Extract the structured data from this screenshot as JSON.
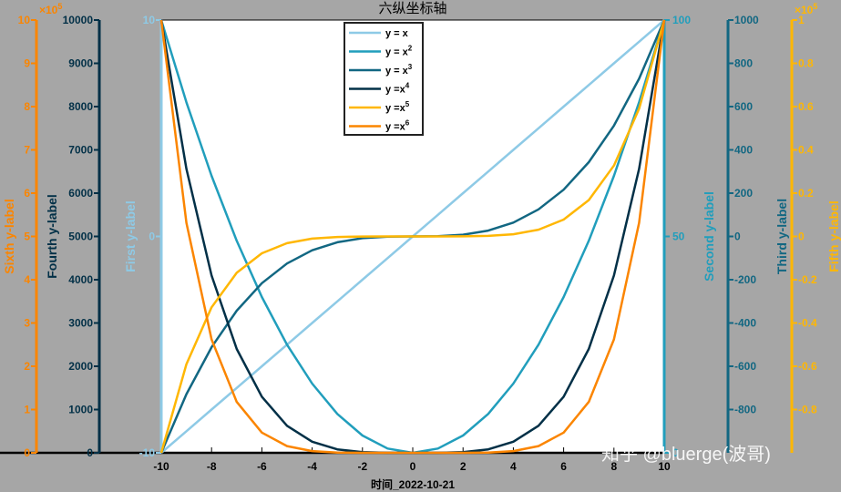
{
  "chart_data": {
    "type": "line",
    "title": "六纵坐标轴",
    "xlabel": "时间_2022-10-21",
    "xlim": [
      -10,
      10
    ],
    "xticks": [
      -10,
      -8,
      -6,
      -4,
      -2,
      0,
      2,
      4,
      6,
      8,
      10
    ],
    "x": [
      -10,
      -9,
      -8,
      -7,
      -6,
      -5,
      -4,
      -3,
      -2,
      -1,
      0,
      1,
      2,
      3,
      4,
      5,
      6,
      7,
      8,
      9,
      10
    ],
    "axes": [
      {
        "id": "y1",
        "label": "First y-label",
        "side": "left",
        "color": "#8ecae6",
        "ylim": [
          -10,
          10
        ],
        "ticks": [
          -10,
          0,
          10
        ]
      },
      {
        "id": "y2",
        "label": "Second y-label",
        "side": "right",
        "color": "#219ebc",
        "ylim": [
          0,
          100
        ],
        "ticks": [
          0,
          50,
          100
        ]
      },
      {
        "id": "y3",
        "label": "Third y-label",
        "side": "right",
        "color": "#126782",
        "ylim": [
          -1000,
          1000
        ],
        "ticks": [
          -800,
          -600,
          -400,
          -200,
          0,
          200,
          400,
          600,
          800,
          1000
        ]
      },
      {
        "id": "y4",
        "label": "Fourth y-label",
        "side": "left",
        "color": "#023047",
        "ylim": [
          0,
          10000
        ],
        "ticks": [
          0,
          1000,
          2000,
          3000,
          4000,
          5000,
          6000,
          7000,
          8000,
          9000,
          10000
        ]
      },
      {
        "id": "y5",
        "label": "Fifth y-label",
        "side": "right",
        "color": "#ffb703",
        "ylim": [
          -100000,
          100000
        ],
        "ticks": [
          -0.8,
          -0.6,
          -0.4,
          -0.2,
          0,
          0.2,
          0.4,
          0.6,
          0.8,
          1
        ],
        "multiplier": "×10",
        "exponent": "5"
      },
      {
        "id": "y6",
        "label": "Sixth y-label",
        "side": "left",
        "color": "#fb8500",
        "ylim": [
          0,
          1000000
        ],
        "ticks": [
          0,
          1,
          2,
          3,
          4,
          5,
          6,
          7,
          8,
          9,
          10
        ],
        "multiplier": "×10",
        "exponent": "5"
      }
    ],
    "series": [
      {
        "name": "y = x",
        "axis": "y1",
        "color": "#8ecae6",
        "values": [
          -10,
          -9,
          -8,
          -7,
          -6,
          -5,
          -4,
          -3,
          -2,
          -1,
          0,
          1,
          2,
          3,
          4,
          5,
          6,
          7,
          8,
          9,
          10
        ]
      },
      {
        "name": "y = x^2",
        "axis": "y2",
        "color": "#219ebc",
        "values": [
          100,
          81,
          64,
          49,
          36,
          25,
          16,
          9,
          4,
          1,
          0,
          1,
          4,
          9,
          16,
          25,
          36,
          49,
          64,
          81,
          100
        ]
      },
      {
        "name": "y = x^3",
        "axis": "y3",
        "color": "#126782",
        "values": [
          -1000,
          -729,
          -512,
          -343,
          -216,
          -125,
          -64,
          -27,
          -8,
          -1,
          0,
          1,
          8,
          27,
          64,
          125,
          216,
          343,
          512,
          729,
          1000
        ]
      },
      {
        "name": "y =x^4",
        "axis": "y4",
        "color": "#023047",
        "values": [
          10000,
          6561,
          4096,
          2401,
          1296,
          625,
          256,
          81,
          16,
          1,
          0,
          1,
          16,
          81,
          256,
          625,
          1296,
          2401,
          4096,
          6561,
          10000
        ]
      },
      {
        "name": "y =x^5",
        "axis": "y5",
        "color": "#ffb703",
        "values": [
          -100000,
          -59049,
          -32768,
          -16807,
          -7776,
          -3125,
          -1024,
          -243,
          -32,
          -1,
          0,
          1,
          32,
          243,
          1024,
          3125,
          7776,
          16807,
          32768,
          59049,
          100000
        ]
      },
      {
        "name": "y =x^6",
        "axis": "y6",
        "color": "#fb8500",
        "values": [
          1000000,
          531441,
          262144,
          117649,
          46656,
          15625,
          4096,
          729,
          64,
          1,
          0,
          1,
          64,
          729,
          4096,
          15625,
          46656,
          117649,
          262144,
          531441,
          1000000
        ]
      }
    ],
    "legend": {
      "placement": "top-center",
      "entries": [
        {
          "base": "y = x",
          "sup": ""
        },
        {
          "base": "y = x",
          "sup": "2"
        },
        {
          "base": "y = x",
          "sup": "3"
        },
        {
          "base": "y =x",
          "sup": "4"
        },
        {
          "base": "y =x",
          "sup": "5"
        },
        {
          "base": "y =x",
          "sup": "6"
        }
      ]
    },
    "grid": false
  },
  "watermark": "知乎 @bluerge(波哥)"
}
